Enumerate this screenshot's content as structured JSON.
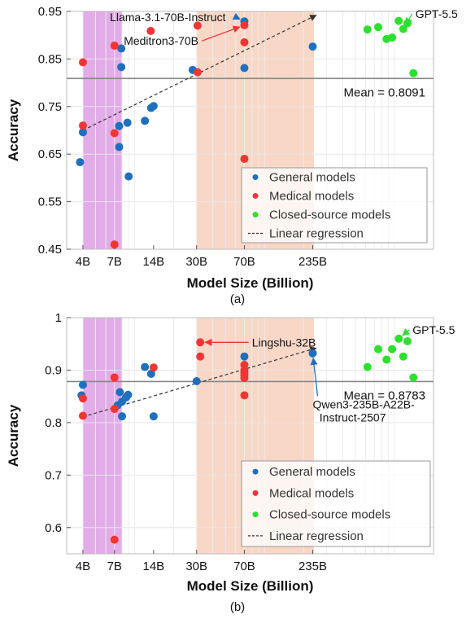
{
  "colors": {
    "general": "#1f6fbf",
    "medical": "#f03535",
    "closed": "#2ee02e",
    "small_band": "#dfa3e6",
    "large_band": "#f7d3c1",
    "mean_line": "#888888",
    "regression": "#333333"
  },
  "chart_data": [
    {
      "type": "scatter",
      "caption": "(a)",
      "xlabel": "Model Size (Billion)",
      "ylabel": "Accuracy",
      "x_scale": "log",
      "x_ticks": [
        {
          "value": 4,
          "label": "4B"
        },
        {
          "value": 7,
          "label": "7B"
        },
        {
          "value": 14,
          "label": "14B"
        },
        {
          "value": 30,
          "label": "30B"
        },
        {
          "value": 70,
          "label": "70B"
        },
        {
          "value": 235,
          "label": "235B"
        }
      ],
      "xlim": [
        3,
        2000
      ],
      "ylim": [
        0.45,
        0.95
      ],
      "y_ticks": [
        {
          "value": 0.45,
          "label": "0.45"
        },
        {
          "value": 0.55,
          "label": "0.55"
        },
        {
          "value": 0.65,
          "label": "0.65"
        },
        {
          "value": 0.75,
          "label": "0.75"
        },
        {
          "value": 0.85,
          "label": "0.85"
        },
        {
          "value": 0.95,
          "label": "0.95"
        }
      ],
      "grid": true,
      "bands": [
        {
          "from": 4,
          "to": 8,
          "kind": "small"
        },
        {
          "from": 30,
          "to": 240,
          "kind": "large"
        }
      ],
      "mean": {
        "value": 0.8091,
        "label": "Mean = 0.8091"
      },
      "regression": {
        "from": [
          4,
          0.7
        ],
        "to": [
          250,
          0.942
        ]
      },
      "legend_position": "bottom-right",
      "legend": [
        {
          "label": "General models",
          "kind": "general"
        },
        {
          "label": "Medical models",
          "kind": "medical"
        },
        {
          "label": "Closed-source models",
          "kind": "closed"
        },
        {
          "label": "Linear regression",
          "kind": "regression"
        }
      ],
      "series": [
        {
          "name": "General models",
          "kind": "general",
          "points": [
            [
              3.8,
              0.633
            ],
            [
              4,
              0.696
            ],
            [
              7.6,
              0.709
            ],
            [
              7.6,
              0.665
            ],
            [
              7.9,
              0.833
            ],
            [
              7.9,
              0.872
            ],
            [
              8.8,
              0.716
            ],
            [
              9,
              0.603
            ],
            [
              12,
              0.72
            ],
            [
              13.4,
              0.747
            ],
            [
              14,
              0.751
            ],
            [
              28,
              0.827
            ],
            [
              70,
              0.831
            ],
            [
              70,
              0.929
            ],
            [
              235,
              0.876
            ]
          ]
        },
        {
          "name": "Medical models",
          "kind": "medical",
          "points": [
            [
              4,
              0.843
            ],
            [
              4,
              0.71
            ],
            [
              7,
              0.878
            ],
            [
              7,
              0.694
            ],
            [
              7,
              0.46
            ],
            [
              13.3,
              0.909
            ],
            [
              30.5,
              0.822
            ],
            [
              30.5,
              0.92
            ],
            [
              70,
              0.921
            ],
            [
              70,
              0.885
            ],
            [
              70,
              0.64
            ]
          ]
        },
        {
          "name": "Closed-source models",
          "kind": "closed",
          "points": [
            [
              620,
              0.912
            ],
            [
              750,
              0.917
            ],
            [
              870,
              0.892
            ],
            [
              960,
              0.895
            ],
            [
              1080,
              0.93
            ],
            [
              1170,
              0.913
            ],
            [
              1260,
              0.925
            ],
            [
              1400,
              0.82
            ]
          ]
        }
      ],
      "annotations": [
        {
          "text": "Llama-3.1-70B-Instruct",
          "at": [
            70,
            0.929
          ],
          "label_at": [
            18,
            0.938
          ],
          "kind": "general",
          "anchor": "middle"
        },
        {
          "text": "Meditron3-70B",
          "at": [
            70,
            0.921
          ],
          "label_at": [
            16,
            0.888
          ],
          "kind": "medical",
          "anchor": "middle"
        },
        {
          "text": "GPT-5.5",
          "at": [
            1170,
            0.913
          ],
          "label_at": [
            1450,
            0.945
          ],
          "kind": "closed",
          "anchor": "start"
        }
      ]
    },
    {
      "type": "scatter",
      "caption": "(b)",
      "xlabel": "Model Size (Billion)",
      "ylabel": "Accuracy",
      "x_scale": "log",
      "x_ticks": [
        {
          "value": 4,
          "label": "4B"
        },
        {
          "value": 7,
          "label": "7B"
        },
        {
          "value": 14,
          "label": "14B"
        },
        {
          "value": 30,
          "label": "30B"
        },
        {
          "value": 70,
          "label": "70B"
        },
        {
          "value": 235,
          "label": "235B"
        }
      ],
      "xlim": [
        3,
        2000
      ],
      "ylim": [
        0.55,
        1.0
      ],
      "y_ticks": [
        {
          "value": 0.6,
          "label": "0.6"
        },
        {
          "value": 0.7,
          "label": "0.7"
        },
        {
          "value": 0.8,
          "label": "0.8"
        },
        {
          "value": 0.9,
          "label": "0.9"
        },
        {
          "value": 1.0,
          "label": "1"
        }
      ],
      "grid": true,
      "bands": [
        {
          "from": 4,
          "to": 8,
          "kind": "small"
        },
        {
          "from": 30,
          "to": 240,
          "kind": "large"
        }
      ],
      "mean": {
        "value": 0.8783,
        "label": "Mean = 0.8783"
      },
      "regression": {
        "from": [
          4,
          0.811
        ],
        "to": [
          250,
          0.942
        ]
      },
      "legend_position": "bottom-right",
      "legend": [
        {
          "label": "General models",
          "kind": "general"
        },
        {
          "label": "Medical models",
          "kind": "medical"
        },
        {
          "label": "Closed-source models",
          "kind": "closed"
        },
        {
          "label": "Linear regression",
          "kind": "regression"
        }
      ],
      "series": [
        {
          "name": "General models",
          "kind": "general",
          "points": [
            [
              3.9,
              0.852
            ],
            [
              4,
              0.872
            ],
            [
              7.4,
              0.833
            ],
            [
              7.7,
              0.858
            ],
            [
              8,
              0.84
            ],
            [
              8,
              0.812
            ],
            [
              8.6,
              0.848
            ],
            [
              8.9,
              0.853
            ],
            [
              12,
              0.906
            ],
            [
              13.4,
              0.893
            ],
            [
              14,
              0.812
            ],
            [
              30,
              0.879
            ],
            [
              70,
              0.926
            ],
            [
              235,
              0.932
            ]
          ]
        },
        {
          "name": "Medical models",
          "kind": "medical",
          "points": [
            [
              4,
              0.846
            ],
            [
              4,
              0.813
            ],
            [
              7,
              0.886
            ],
            [
              7,
              0.826
            ],
            [
              7,
              0.577
            ],
            [
              14,
              0.905
            ],
            [
              32,
              0.953
            ],
            [
              32,
              0.926
            ],
            [
              70,
              0.91
            ],
            [
              70,
              0.9
            ],
            [
              70,
              0.895
            ],
            [
              70,
              0.89
            ],
            [
              70,
              0.885
            ],
            [
              70,
              0.852
            ]
          ]
        },
        {
          "name": "Closed-source models",
          "kind": "closed",
          "points": [
            [
              620,
              0.906
            ],
            [
              750,
              0.94
            ],
            [
              870,
              0.92
            ],
            [
              960,
              0.94
            ],
            [
              1080,
              0.96
            ],
            [
              1170,
              0.926
            ],
            [
              1260,
              0.955
            ],
            [
              1400,
              0.886
            ]
          ]
        }
      ],
      "annotations": [
        {
          "text": "Lingshu-32B",
          "at": [
            32,
            0.953
          ],
          "label_at": [
            80,
            0.953
          ],
          "kind": "medical",
          "anchor": "start"
        },
        {
          "text": "GPT-5.5",
          "at": [
            1080,
            0.96
          ],
          "label_at": [
            1380,
            0.977
          ],
          "kind": "closed",
          "anchor": "start"
        },
        {
          "text": "Qwen3-235B-A22B-",
          "at": [
            235,
            0.932
          ],
          "label_at": [
            235,
            0.835
          ],
          "kind": "general",
          "anchor": "start"
        },
        {
          "text": "Instruct-2507",
          "label_at": [
            265,
            0.81
          ],
          "kind": "general",
          "anchor": "start"
        }
      ]
    }
  ]
}
